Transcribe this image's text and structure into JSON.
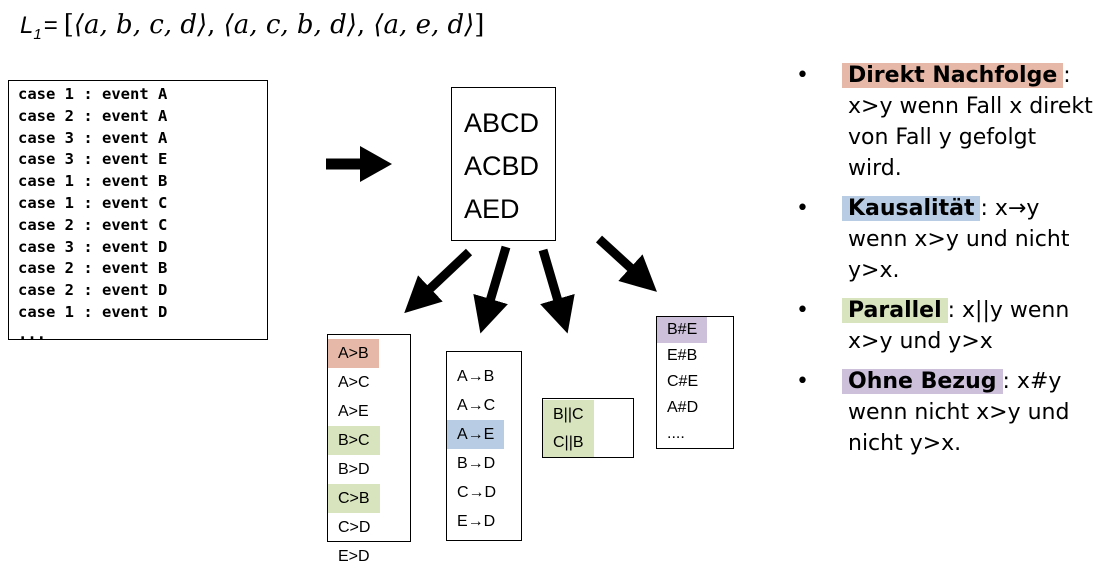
{
  "formula": {
    "lhs": "L",
    "lhs_sub": "1",
    "eq": "=",
    "prefix": "[",
    "trace1": "⟨a, b, c, d⟩",
    "sep1": ", ",
    "trace2": "⟨a, c, b, d⟩",
    "sep2": ", ",
    "trace3": "⟨a, e, d⟩",
    "suffix": "]"
  },
  "event_log": {
    "rows": [
      "case 1 : event A",
      "case 2 : event A",
      "case 3 : event A",
      "case 3 : event E",
      "case 1 : event B",
      "case 1 : event C",
      "case 2 : event C",
      "case 3 : event D",
      "case 2 : event B",
      "case 2 : event D",
      "case 1 : event D",
      "..."
    ]
  },
  "traces": [
    "ABCD",
    "ACBD",
    "AED"
  ],
  "relations": {
    "succession": [
      {
        "text": "A>B",
        "color": "#e6b8a7"
      },
      {
        "text": "A>C",
        "color": ""
      },
      {
        "text": "A>E",
        "color": ""
      },
      {
        "text": "B>C",
        "color": "#d7e4bd"
      },
      {
        "text": "B>D",
        "color": ""
      },
      {
        "text": "C>B",
        "color": "#d7e4bd"
      },
      {
        "text": "C>D",
        "color": ""
      },
      {
        "text": "E>D",
        "color": ""
      }
    ],
    "causality": [
      {
        "text": "A→B",
        "color": ""
      },
      {
        "text": "A→C",
        "color": ""
      },
      {
        "text": "A→E",
        "color": "#b8cce4"
      },
      {
        "text": "B→D",
        "color": ""
      },
      {
        "text": "C→D",
        "color": ""
      },
      {
        "text": "E→D",
        "color": ""
      }
    ],
    "parallel": [
      {
        "text": "B||C",
        "color": "#d7e4bd"
      },
      {
        "text": "C||B",
        "color": "#d7e4bd"
      }
    ],
    "none": [
      {
        "text": "B#E",
        "color": "#ccc0da"
      },
      {
        "text": "E#B",
        "color": ""
      },
      {
        "text": "C#E",
        "color": ""
      },
      {
        "text": "A#D",
        "color": ""
      },
      {
        "text": "....",
        "color": ""
      }
    ]
  },
  "legend": {
    "bullet": "•",
    "items": [
      {
        "term": "Direkt Nachfolge",
        "rest": ": x>y wenn Fall x direkt von Fall y gefolgt wird.",
        "color": "#e6b8a7"
      },
      {
        "term": "Kausalität",
        "rest": ": x→y wenn x>y und nicht y>x.",
        "color": "#b8cce4"
      },
      {
        "term": "Parallel",
        "rest": ": x||y wenn x>y und y>x",
        "color": "#d7e4bd"
      },
      {
        "term": "Ohne Bezug",
        "rest": ": x#y wenn nicht x>y und nicht y>x.",
        "color": "#ccc0da"
      }
    ]
  }
}
